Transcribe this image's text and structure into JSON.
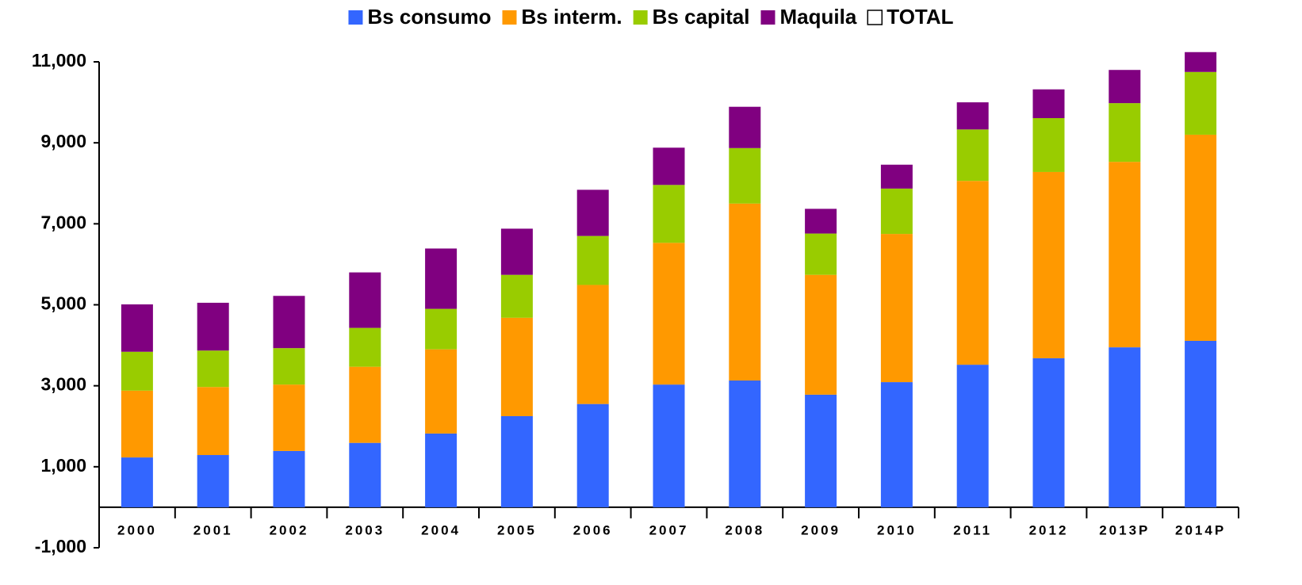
{
  "chart_data": {
    "type": "stacked_bar",
    "categories": [
      "2000",
      "2001",
      "2002",
      "2003",
      "2004",
      "2005",
      "2006",
      "2007",
      "2008",
      "2009",
      "2010",
      "2011",
      "2012",
      "2013P",
      "2014P"
    ],
    "series": [
      {
        "name": "Bs consumo",
        "color": "#3366ff",
        "values": [
          1230,
          1290,
          1390,
          1590,
          1820,
          2250,
          2550,
          3030,
          3130,
          2780,
          3090,
          3520,
          3680,
          3950,
          4110
        ]
      },
      {
        "name": "Bs interm.",
        "color": "#ff9900",
        "values": [
          1650,
          1680,
          1640,
          1880,
          2080,
          2430,
          2940,
          3500,
          4370,
          2960,
          3660,
          4540,
          4600,
          4580,
          5090
        ]
      },
      {
        "name": "Bs capital",
        "color": "#99cc00",
        "values": [
          960,
          900,
          900,
          960,
          1000,
          1060,
          1210,
          1430,
          1370,
          1020,
          1120,
          1270,
          1330,
          1450,
          1550
        ]
      },
      {
        "name": "Maquila",
        "color": "#800080",
        "values": [
          1170,
          1180,
          1290,
          1370,
          1490,
          1140,
          1140,
          920,
          1020,
          610,
          590,
          670,
          710,
          820,
          490
        ]
      },
      {
        "name": "TOTAL",
        "color": "#ffffff",
        "stacked": false,
        "values": [
          5010,
          5050,
          5220,
          5800,
          6390,
          6880,
          7840,
          8880,
          9890,
          7370,
          8460,
          10000,
          10320,
          10800,
          11240
        ]
      }
    ],
    "ylim": [
      -1000,
      11000
    ],
    "yticks": [
      {
        "value": -1000,
        "label": "-1,000"
      },
      {
        "value": 1000,
        "label": "1,000"
      },
      {
        "value": 3000,
        "label": "3,000"
      },
      {
        "value": 5000,
        "label": "5,000"
      },
      {
        "value": 7000,
        "label": "7,000"
      },
      {
        "value": 9000,
        "label": "9,000"
      },
      {
        "value": 11000,
        "label": "11,000"
      }
    ],
    "grid": false,
    "legend": "top"
  }
}
